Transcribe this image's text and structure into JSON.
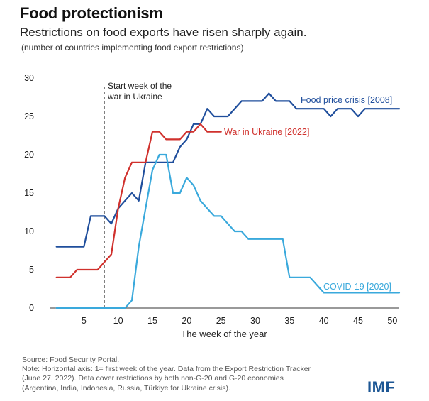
{
  "header": {
    "title": "Food protectionism",
    "subtitle": "Restrictions on food exports have risen sharply again.",
    "note": "(number of countries implementing food export restrictions)"
  },
  "chart_data": {
    "type": "line",
    "xlabel": "The week of the year",
    "ylabel": "",
    "xlim": [
      0,
      51
    ],
    "ylim": [
      0,
      30
    ],
    "x_ticks": [
      5,
      10,
      15,
      20,
      25,
      30,
      35,
      40,
      45,
      50
    ],
    "y_ticks": [
      0,
      5,
      10,
      15,
      20,
      25,
      30
    ],
    "grid": false,
    "legend": "inline labels at line ends",
    "annotation": {
      "x": 8,
      "line1": "Start week of the",
      "line2": "war in Ukraine"
    },
    "series": [
      {
        "name": "Food price crisis [2008]",
        "color": "#1f4e9c",
        "x": [
          1,
          2,
          3,
          4,
          5,
          6,
          7,
          8,
          9,
          10,
          11,
          12,
          13,
          14,
          15,
          16,
          17,
          18,
          19,
          20,
          21,
          22,
          23,
          24,
          25,
          26,
          27,
          28,
          29,
          30,
          31,
          32,
          33,
          34,
          35,
          36,
          37,
          38,
          39,
          40,
          41,
          42,
          43,
          44,
          45,
          46,
          47,
          48,
          49,
          50,
          51
        ],
        "values": [
          8,
          8,
          8,
          8,
          8,
          12,
          12,
          12,
          11,
          13,
          14,
          15,
          14,
          19,
          19,
          19,
          19,
          19,
          21,
          22,
          24,
          24,
          26,
          25,
          25,
          25,
          26,
          27,
          27,
          27,
          27,
          28,
          27,
          27,
          27,
          26,
          26,
          26,
          26,
          26,
          25,
          26,
          26,
          26,
          25,
          26,
          26,
          26,
          26,
          26,
          26
        ]
      },
      {
        "name": "War in Ukraine [2022]",
        "color": "#d0312d",
        "x": [
          1,
          2,
          3,
          4,
          5,
          6,
          7,
          8,
          9,
          10,
          11,
          12,
          13,
          14,
          15,
          16,
          17,
          18,
          19,
          20,
          21,
          22,
          23,
          24,
          25
        ],
        "values": [
          4,
          4,
          4,
          5,
          5,
          5,
          5,
          6,
          7,
          13,
          17,
          19,
          19,
          19,
          23,
          23,
          22,
          22,
          22,
          23,
          23,
          24,
          23,
          23,
          23
        ]
      },
      {
        "name": "COVID-19 [2020]",
        "color": "#3aa9dc",
        "x": [
          1,
          2,
          3,
          4,
          5,
          6,
          7,
          8,
          9,
          10,
          11,
          12,
          13,
          14,
          15,
          16,
          17,
          18,
          19,
          20,
          21,
          22,
          23,
          24,
          25,
          26,
          27,
          28,
          29,
          30,
          31,
          32,
          33,
          34,
          35,
          36,
          37,
          38,
          39,
          40,
          41,
          42,
          43,
          44,
          45,
          46,
          47,
          48,
          49,
          50,
          51
        ],
        "values": [
          0,
          0,
          0,
          0,
          0,
          0,
          0,
          0,
          0,
          0,
          0,
          1,
          8,
          13,
          18,
          20,
          20,
          15,
          15,
          17,
          16,
          14,
          13,
          12,
          12,
          11,
          10,
          10,
          9,
          9,
          9,
          9,
          9,
          9,
          4,
          4,
          4,
          4,
          3,
          2,
          2,
          2,
          2,
          2,
          2,
          2,
          2,
          2,
          2,
          2,
          2
        ]
      }
    ]
  },
  "footer": {
    "line1": "Source: Food Security Portal.",
    "line2": "Note: Horizontal axis: 1= first week of the year. Data from the Export Restriction Tracker",
    "line3": "(June 27, 2022). Data cover restrictions by both non-G-20 and G-20 economies",
    "line4": "(Argentina, India, Indonesia, Russia, Türkiye for Ukraine crisis)."
  },
  "logo": "IMF"
}
